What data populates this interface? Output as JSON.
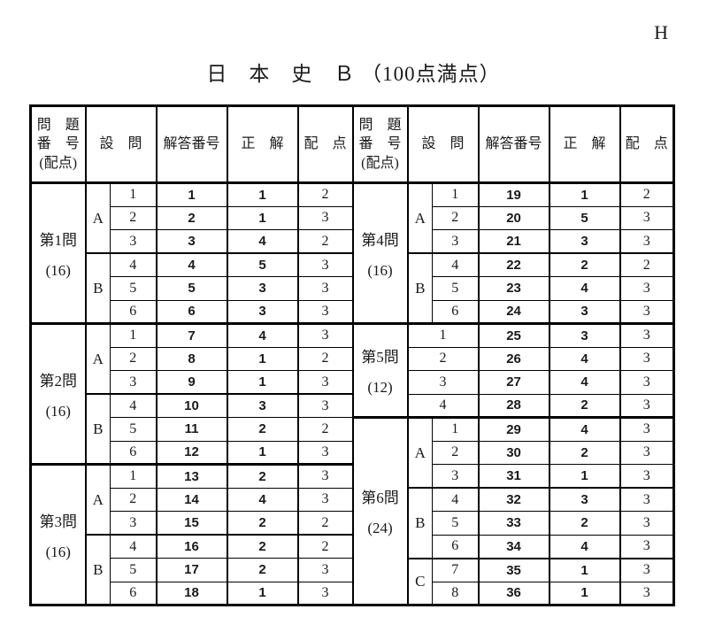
{
  "page": {
    "corner_mark": "H",
    "title": "日　本　史　Ｂ （100点満点）"
  },
  "table": {
    "headers": {
      "problem_lines": [
        "問　題",
        "番　号",
        "(配点)"
      ],
      "question": "設　問",
      "answer_number": "解答番号",
      "correct": "正　解",
      "points": "配　点"
    },
    "left": {
      "problems": [
        {
          "title": "第1問",
          "points_label": "(16)",
          "groups": [
            {
              "label": "A",
              "rows": [
                [
                  1,
                  1,
                  1,
                  2
                ],
                [
                  2,
                  2,
                  1,
                  3
                ],
                [
                  3,
                  3,
                  4,
                  2
                ]
              ]
            },
            {
              "label": "B",
              "rows": [
                [
                  4,
                  4,
                  5,
                  3
                ],
                [
                  5,
                  5,
                  3,
                  3
                ],
                [
                  6,
                  6,
                  3,
                  3
                ]
              ]
            }
          ]
        },
        {
          "title": "第2問",
          "points_label": "(16)",
          "groups": [
            {
              "label": "A",
              "rows": [
                [
                  1,
                  7,
                  4,
                  3
                ],
                [
                  2,
                  8,
                  1,
                  2
                ],
                [
                  3,
                  9,
                  1,
                  3
                ]
              ]
            },
            {
              "label": "B",
              "rows": [
                [
                  4,
                  10,
                  3,
                  3
                ],
                [
                  5,
                  11,
                  2,
                  2
                ],
                [
                  6,
                  12,
                  1,
                  3
                ]
              ]
            }
          ]
        },
        {
          "title": "第3問",
          "points_label": "(16)",
          "groups": [
            {
              "label": "A",
              "rows": [
                [
                  1,
                  13,
                  2,
                  3
                ],
                [
                  2,
                  14,
                  4,
                  3
                ],
                [
                  3,
                  15,
                  2,
                  2
                ]
              ]
            },
            {
              "label": "B",
              "rows": [
                [
                  4,
                  16,
                  2,
                  2
                ],
                [
                  5,
                  17,
                  2,
                  3
                ],
                [
                  6,
                  18,
                  1,
                  3
                ]
              ]
            }
          ]
        }
      ]
    },
    "right": {
      "problems": [
        {
          "title": "第4問",
          "points_label": "(16)",
          "groups": [
            {
              "label": "A",
              "rows": [
                [
                  1,
                  19,
                  1,
                  2
                ],
                [
                  2,
                  20,
                  5,
                  3
                ],
                [
                  3,
                  21,
                  3,
                  3
                ]
              ]
            },
            {
              "label": "B",
              "rows": [
                [
                  4,
                  22,
                  2,
                  2
                ],
                [
                  5,
                  23,
                  4,
                  3
                ],
                [
                  6,
                  24,
                  3,
                  3
                ]
              ]
            }
          ]
        },
        {
          "title": "第5問",
          "points_label": "(12)",
          "groups": [
            {
              "label": null,
              "rows": [
                [
                  1,
                  25,
                  3,
                  3
                ],
                [
                  2,
                  26,
                  4,
                  3
                ],
                [
                  3,
                  27,
                  4,
                  3
                ],
                [
                  4,
                  28,
                  2,
                  3
                ]
              ]
            }
          ]
        },
        {
          "title": "第6問",
          "points_label": "(24)",
          "groups": [
            {
              "label": "A",
              "rows": [
                [
                  1,
                  29,
                  4,
                  3
                ],
                [
                  2,
                  30,
                  2,
                  3
                ],
                [
                  3,
                  31,
                  1,
                  3
                ]
              ]
            },
            {
              "label": "B",
              "rows": [
                [
                  4,
                  32,
                  3,
                  3
                ],
                [
                  5,
                  33,
                  2,
                  3
                ],
                [
                  6,
                  34,
                  4,
                  3
                ]
              ]
            },
            {
              "label": "C",
              "rows": [
                [
                  7,
                  35,
                  1,
                  3
                ],
                [
                  8,
                  36,
                  1,
                  3
                ]
              ]
            }
          ]
        }
      ]
    }
  }
}
